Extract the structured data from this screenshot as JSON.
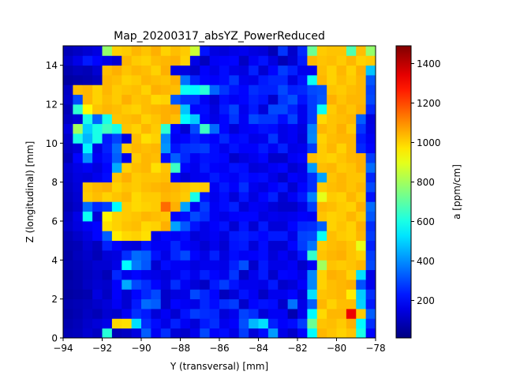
{
  "chart_data": {
    "type": "heatmap",
    "title": "Map_20200317_absYZ_PowerReduced",
    "xlabel": "Y (transversal) [mm]",
    "ylabel": "Z (longitudinal) [mm]",
    "colorbar_label": "a [ppm/cm]",
    "xlim": [
      -94,
      -78
    ],
    "ylim": [
      0,
      15
    ],
    "clim": [
      10,
      1490
    ],
    "colormap": "jet",
    "x_ticks": [
      -94,
      -92,
      -90,
      -88,
      -86,
      -84,
      -82,
      -80,
      -78
    ],
    "x_tick_labels": [
      "−94",
      "−92",
      "−90",
      "−88",
      "−86",
      "−84",
      "−82",
      "−80",
      "−78"
    ],
    "y_ticks": [
      0,
      2,
      4,
      6,
      8,
      10,
      12,
      14
    ],
    "y_tick_labels": [
      "0",
      "2",
      "4",
      "6",
      "8",
      "10",
      "12",
      "14"
    ],
    "colorbar_ticks": [
      200,
      400,
      600,
      800,
      1000,
      1200,
      1400
    ],
    "colorbar_tick_labels": [
      "200",
      "400",
      "600",
      "800",
      "1000",
      "1200",
      "1400"
    ],
    "cols": 32,
    "rows": 30,
    "dy": 0.5,
    "grid": false,
    "matrix": [
      [
        90,
        100,
        130,
        110,
        620,
        95,
        110,
        150,
        330,
        180,
        260,
        140,
        120,
        170,
        300,
        190,
        210,
        160,
        280,
        140,
        210,
        420,
        160,
        120,
        200,
        560,
        1040,
        1020,
        1000,
        1020,
        600,
        200
      ],
      [
        80,
        95,
        120,
        140,
        160,
        990,
        980,
        520,
        260,
        210,
        160,
        240,
        180,
        140,
        230,
        260,
        170,
        190,
        310,
        460,
        520,
        240,
        190,
        210,
        280,
        720,
        1020,
        1030,
        1010,
        1050,
        560,
        260
      ],
      [
        70,
        85,
        110,
        90,
        130,
        120,
        180,
        260,
        230,
        140,
        180,
        130,
        220,
        280,
        260,
        250,
        140,
        170,
        290,
        260,
        140,
        180,
        180,
        80,
        170,
        560,
        990,
        1040,
        1040,
        1330,
        1010,
        330
      ],
      [
        80,
        90,
        100,
        120,
        140,
        180,
        130,
        230,
        350,
        330,
        120,
        200,
        180,
        160,
        250,
        210,
        260,
        280,
        120,
        200,
        220,
        210,
        120,
        360,
        160,
        330,
        1040,
        1000,
        1030,
        1030,
        500,
        230
      ],
      [
        60,
        70,
        80,
        150,
        110,
        190,
        130,
        200,
        250,
        300,
        120,
        150,
        160,
        300,
        250,
        200,
        100,
        140,
        220,
        180,
        110,
        170,
        170,
        200,
        140,
        520,
        1020,
        1030,
        1040,
        960,
        490,
        260
      ],
      [
        70,
        80,
        110,
        130,
        120,
        190,
        440,
        300,
        260,
        200,
        150,
        260,
        180,
        140,
        110,
        230,
        280,
        220,
        170,
        170,
        160,
        230,
        120,
        140,
        190,
        390,
        1000,
        1030,
        1040,
        1050,
        310,
        170
      ],
      [
        60,
        80,
        100,
        120,
        90,
        250,
        170,
        200,
        170,
        160,
        140,
        170,
        220,
        170,
        240,
        200,
        170,
        270,
        110,
        170,
        230,
        120,
        200,
        190,
        160,
        390,
        1000,
        1050,
        1040,
        1000,
        520,
        160
      ],
      [
        80,
        90,
        110,
        130,
        130,
        160,
        560,
        370,
        320,
        130,
        210,
        180,
        180,
        150,
        170,
        170,
        160,
        240,
        310,
        120,
        230,
        160,
        160,
        180,
        120,
        180,
        800,
        1020,
        1010,
        1020,
        1040,
        300
      ],
      [
        70,
        100,
        120,
        90,
        140,
        150,
        260,
        350,
        330,
        220,
        160,
        250,
        300,
        200,
        160,
        240,
        150,
        210,
        180,
        190,
        210,
        140,
        180,
        140,
        220,
        640,
        1020,
        1040,
        1050,
        1020,
        1000,
        280
      ],
      [
        80,
        90,
        130,
        100,
        240,
        190,
        150,
        140,
        220,
        180,
        180,
        250,
        190,
        170,
        130,
        170,
        130,
        220,
        230,
        140,
        210,
        130,
        130,
        200,
        280,
        360,
        1010,
        1030,
        1040,
        1020,
        900,
        240
      ],
      [
        90,
        120,
        150,
        200,
        330,
        960,
        990,
        1000,
        980,
        160,
        200,
        180,
        210,
        140,
        160,
        180,
        150,
        230,
        240,
        220,
        200,
        230,
        230,
        160,
        290,
        300,
        580,
        1030,
        1010,
        1000,
        1040,
        280
      ],
      [
        120,
        150,
        180,
        200,
        980,
        1000,
        1020,
        1030,
        990,
        1000,
        1050,
        430,
        320,
        220,
        160,
        190,
        220,
        130,
        220,
        130,
        230,
        140,
        140,
        200,
        250,
        260,
        330,
        1000,
        1020,
        1000,
        1050,
        260
      ],
      [
        110,
        160,
        580,
        140,
        950,
        1000,
        1010,
        1020,
        1040,
        1030,
        1020,
        190,
        210,
        300,
        260,
        180,
        160,
        190,
        200,
        200,
        150,
        170,
        160,
        170,
        190,
        180,
        1020,
        1000,
        1010,
        1040,
        1010,
        320
      ],
      [
        90,
        120,
        350,
        250,
        280,
        560,
        1010,
        990,
        1000,
        1010,
        1150,
        1050,
        430,
        180,
        280,
        180,
        210,
        240,
        140,
        180,
        170,
        140,
        120,
        120,
        160,
        280,
        1040,
        1030,
        1010,
        1000,
        1050,
        350
      ],
      [
        100,
        130,
        1010,
        1030,
        1000,
        1020,
        1040,
        990,
        1010,
        1010,
        1040,
        1030,
        1010,
        600,
        220,
        170,
        210,
        140,
        220,
        150,
        200,
        240,
        130,
        180,
        230,
        380,
        900,
        1010,
        1000,
        1040,
        1010,
        220
      ],
      [
        110,
        140,
        1020,
        1040,
        1050,
        1000,
        1020,
        1010,
        1030,
        1040,
        1050,
        1040,
        1020,
        1000,
        1010,
        180,
        230,
        190,
        260,
        170,
        150,
        190,
        220,
        130,
        200,
        260,
        1010,
        1030,
        1040,
        1020,
        1040,
        300
      ],
      [
        120,
        150,
        140,
        170,
        210,
        1020,
        1050,
        1010,
        1020,
        1020,
        1030,
        190,
        140,
        170,
        180,
        230,
        200,
        180,
        220,
        200,
        210,
        160,
        120,
        190,
        170,
        260,
        430,
        1020,
        1040,
        1020,
        1020,
        250
      ],
      [
        130,
        160,
        180,
        150,
        200,
        440,
        1000,
        1030,
        1040,
        980,
        1020,
        650,
        200,
        170,
        230,
        190,
        180,
        220,
        210,
        140,
        150,
        180,
        200,
        130,
        160,
        420,
        1030,
        1040,
        1010,
        1020,
        1050,
        350
      ],
      [
        90,
        200,
        400,
        180,
        220,
        330,
        170,
        1010,
        1040,
        1030,
        210,
        330,
        250,
        180,
        220,
        210,
        200,
        120,
        150,
        170,
        200,
        120,
        120,
        180,
        200,
        1030,
        1010,
        1000,
        1020,
        1040,
        1050,
        280
      ],
      [
        110,
        140,
        550,
        160,
        240,
        350,
        1010,
        1040,
        1030,
        1040,
        410,
        220,
        260,
        270,
        280,
        210,
        170,
        220,
        190,
        190,
        230,
        180,
        240,
        160,
        170,
        280,
        1010,
        1040,
        1000,
        1040,
        250,
        200
      ],
      [
        120,
        600,
        460,
        600,
        230,
        290,
        150,
        1030,
        980,
        1000,
        390,
        180,
        200,
        240,
        210,
        190,
        250,
        200,
        210,
        160,
        170,
        270,
        160,
        180,
        140,
        390,
        1000,
        1030,
        1040,
        1040,
        230,
        180
      ],
      [
        150,
        800,
        500,
        600,
        660,
        600,
        1020,
        1000,
        1040,
        1010,
        630,
        200,
        130,
        300,
        650,
        350,
        200,
        140,
        180,
        190,
        220,
        210,
        160,
        180,
        150,
        380,
        1040,
        1020,
        1050,
        1010,
        270,
        160
      ],
      [
        110,
        140,
        600,
        340,
        600,
        1020,
        1030,
        1040,
        1000,
        1020,
        1050,
        1030,
        560,
        490,
        200,
        160,
        200,
        270,
        180,
        300,
        270,
        270,
        210,
        290,
        170,
        280,
        990,
        1020,
        1030,
        1040,
        330,
        150
      ],
      [
        90,
        630,
        940,
        1020,
        1040,
        1030,
        1010,
        1000,
        1030,
        1040,
        1050,
        1060,
        480,
        200,
        210,
        150,
        230,
        290,
        170,
        230,
        140,
        300,
        300,
        240,
        170,
        280,
        580,
        1010,
        1040,
        1020,
        1050,
        250
      ],
      [
        120,
        300,
        1040,
        1000,
        1030,
        1010,
        1050,
        1020,
        1030,
        990,
        1000,
        320,
        260,
        260,
        180,
        130,
        210,
        180,
        200,
        240,
        220,
        120,
        270,
        310,
        220,
        280,
        320,
        1050,
        1020,
        1040,
        1040,
        300
      ],
      [
        110,
        1030,
        1040,
        1000,
        1040,
        1010,
        1020,
        1030,
        1000,
        1050,
        1040,
        1030,
        580,
        560,
        620,
        340,
        270,
        220,
        200,
        260,
        240,
        240,
        300,
        240,
        250,
        300,
        310,
        1020,
        1010,
        1030,
        1040,
        290
      ],
      [
        60,
        70,
        80,
        100,
        1040,
        1030,
        1000,
        1010,
        1040,
        1030,
        1020,
        1050,
        360,
        240,
        200,
        190,
        210,
        270,
        170,
        160,
        230,
        250,
        250,
        150,
        220,
        580,
        1040,
        1000,
        1030,
        1010,
        1040,
        320
      ],
      [
        80,
        100,
        90,
        130,
        1030,
        1050,
        1020,
        1040,
        1030,
        1000,
        1050,
        160,
        150,
        120,
        190,
        160,
        210,
        160,
        150,
        240,
        130,
        200,
        280,
        240,
        170,
        170,
        1030,
        1000,
        1040,
        1000,
        1050,
        480
      ],
      [
        120,
        160,
        230,
        200,
        160,
        130,
        1040,
        1010,
        1000,
        1030,
        1040,
        1050,
        1000,
        160,
        100,
        180,
        190,
        200,
        110,
        180,
        220,
        150,
        90,
        130,
        230,
        1040,
        1020,
        1030,
        1010,
        1040,
        1000,
        1010
      ],
      [
        90,
        110,
        130,
        150,
        780,
        1000,
        1010,
        1040,
        1020,
        1050,
        1000,
        1030,
        1010,
        860,
        220,
        150,
        140,
        160,
        170,
        150,
        140,
        90,
        270,
        120,
        250,
        720,
        1010,
        1020,
        1020,
        680,
        1030,
        780
      ]
    ]
  }
}
